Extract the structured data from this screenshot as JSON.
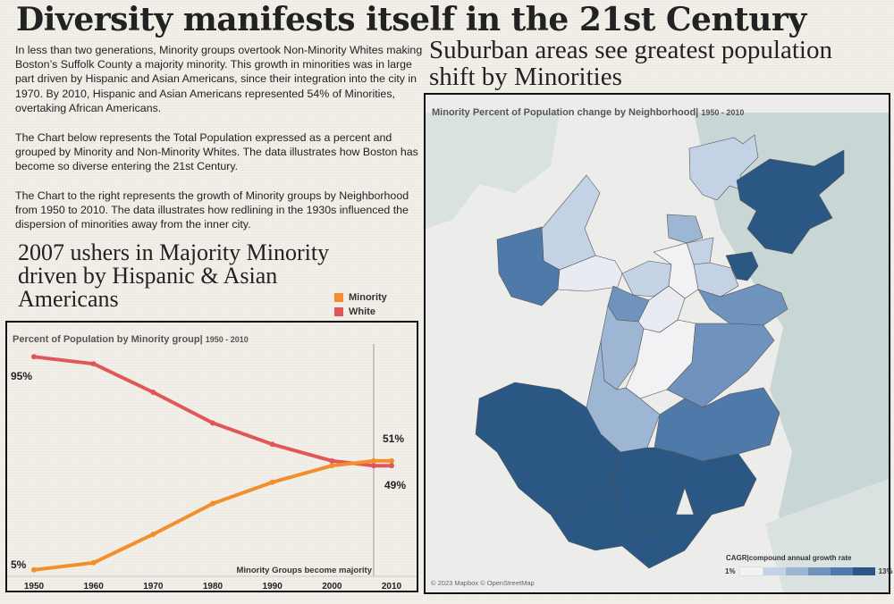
{
  "page_title": "Diversity manifests itself in the 21st Century",
  "intro": {
    "p1": "In less than two generations, Minority groups overtook Non-Minority Whites making Boston’s Suffolk County a majority minority. This growth in minorities was in large part driven by Hispanic and Asian Americans, since their integration into the city in 1970. By 2010, Hispanic and Asian Americans represented 54% of Minorities, overtaking African Americans.",
    "p2": "The Chart below represents the Total Population expressed as a percent and grouped by Minority and Non-Minority Whites. The data illustrates how Boston has become so diverse entering the 21st Century.",
    "p3": "The Chart to the right represents the growth of Minority groups by Neighborhood from 1950 to 2010. The data illustrates how redlining in the 1930s influenced the dispersion of minorities away from the inner city."
  },
  "left_heading": "2007 ushers in Majority Minority driven by Hispanic & Asian Americans",
  "right_heading": "Suburban areas see greatest population shift by Minorities",
  "colors": {
    "minority": "#f28e2b",
    "white": "#e15759",
    "map_dark": "#2a5783",
    "map_light": "#f2f2f4"
  },
  "chart_data": [
    {
      "type": "line",
      "title": "Percent of Population by Minority group|",
      "subtitle": "1950 - 2010",
      "x": [
        1950,
        1960,
        1970,
        1980,
        1990,
        2000,
        2007,
        2010
      ],
      "series": [
        {
          "name": "Minority",
          "color": "#f28e2b",
          "values": [
            5,
            8,
            20,
            33,
            42,
            49,
            51,
            51
          ]
        },
        {
          "name": "White",
          "color": "#e15759",
          "values": [
            95,
            92,
            80,
            67,
            58,
            51,
            49,
            49
          ]
        }
      ],
      "ylim": [
        0,
        100
      ],
      "x_ticks": [
        "1950",
        "1960",
        "1970",
        "1980",
        "1990",
        "2000",
        "2010"
      ],
      "data_labels": [
        {
          "text": "95%"
        },
        {
          "text": "5%"
        },
        {
          "text": "51%"
        },
        {
          "text": "49%"
        }
      ],
      "reference_line": {
        "x": 2007,
        "label": "Minority Groups become majority"
      },
      "legend": {
        "position": "top-right",
        "items": [
          "Minority",
          "White"
        ]
      }
    },
    {
      "type": "choropleth",
      "title": "Minority Percent of Population change by Neighborhood|",
      "subtitle": "1950 - 2010",
      "attribution": "© 2023 Mapbox © OpenStreetMap",
      "color_scale": {
        "title": "CAGR|compound annual growth rate",
        "min_label": "1%",
        "max_label": "13%",
        "steps": [
          "#f2f2f4",
          "#c3d3e5",
          "#9db6d3",
          "#6f93bd",
          "#4f79a8",
          "#2a5783"
        ]
      }
    }
  ]
}
